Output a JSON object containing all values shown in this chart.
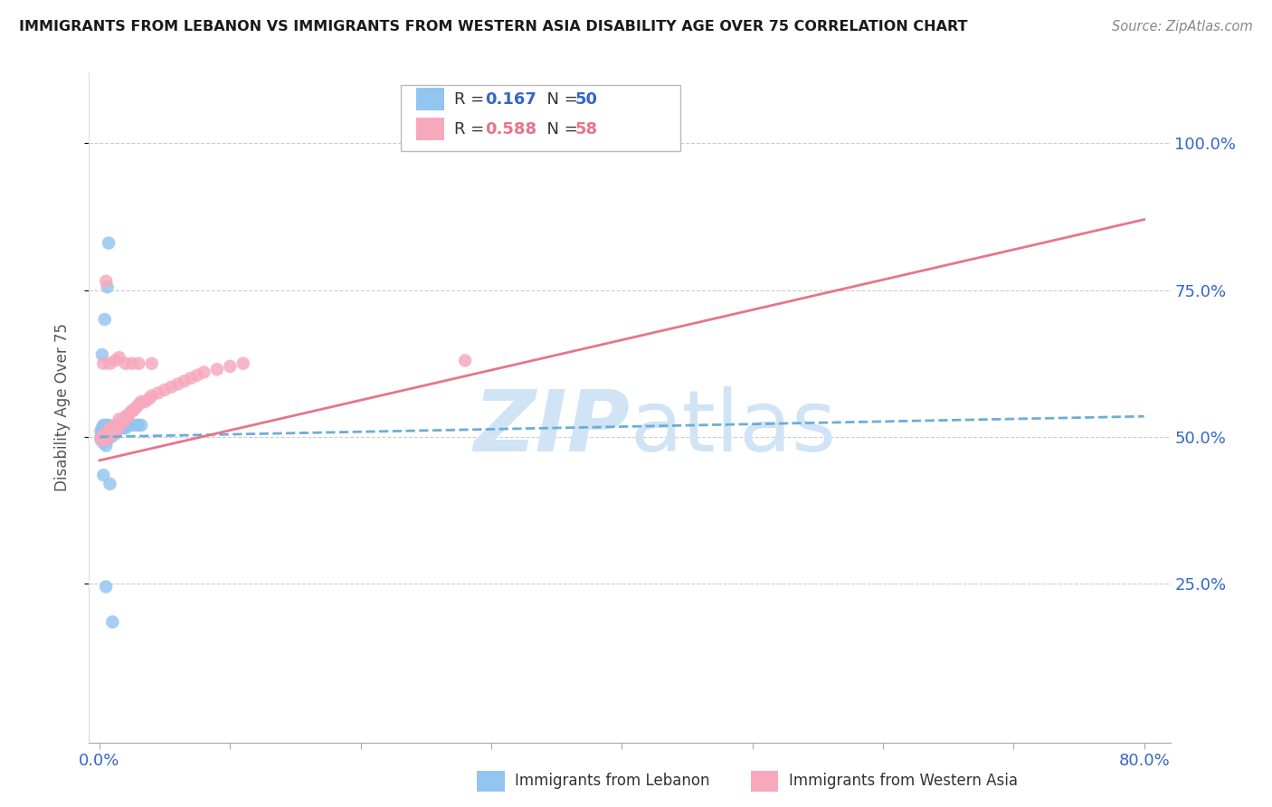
{
  "title": "IMMIGRANTS FROM LEBANON VS IMMIGRANTS FROM WESTERN ASIA DISABILITY AGE OVER 75 CORRELATION CHART",
  "source": "Source: ZipAtlas.com",
  "ylabel": "Disability Age Over 75",
  "ytick_labels": [
    "100.0%",
    "75.0%",
    "50.0%",
    "25.0%"
  ],
  "ytick_values": [
    1.0,
    0.75,
    0.5,
    0.25
  ],
  "xlim": [
    0.0,
    0.8
  ],
  "ylim": [
    0.0,
    1.1
  ],
  "color_blue": "#92C5F0",
  "color_pink": "#F7A8BC",
  "trend_blue_color": "#6BAED6",
  "trend_pink_color": "#E8758A",
  "watermark_color": "#D0E4F5",
  "grid_color": "#CCCCCC",
  "title_color": "#1A1A1A",
  "axis_label_color": "#3366CC",
  "ylabel_color": "#555555",
  "legend_r1_text": "R =  0.167   N = 50",
  "legend_r2_text": "R =  0.588   N = 58",
  "r_lebanon": 0.167,
  "n_lebanon": 50,
  "r_western_asia": 0.588,
  "n_western_asia": 58,
  "scatter_lebanon_x": [
    0.001,
    0.001,
    0.002,
    0.002,
    0.002,
    0.003,
    0.003,
    0.003,
    0.003,
    0.004,
    0.004,
    0.004,
    0.005,
    0.005,
    0.005,
    0.005,
    0.006,
    0.006,
    0.006,
    0.007,
    0.007,
    0.007,
    0.008,
    0.008,
    0.009,
    0.009,
    0.01,
    0.01,
    0.011,
    0.012,
    0.012,
    0.013,
    0.014,
    0.016,
    0.017,
    0.018,
    0.02,
    0.022,
    0.025,
    0.028,
    0.03,
    0.032,
    0.002,
    0.004,
    0.006,
    0.007,
    0.003,
    0.008,
    0.005,
    0.01
  ],
  "scatter_lebanon_y": [
    0.5,
    0.51,
    0.495,
    0.505,
    0.515,
    0.49,
    0.5,
    0.51,
    0.52,
    0.495,
    0.505,
    0.515,
    0.485,
    0.5,
    0.51,
    0.52,
    0.495,
    0.505,
    0.515,
    0.5,
    0.51,
    0.52,
    0.505,
    0.515,
    0.5,
    0.515,
    0.505,
    0.515,
    0.51,
    0.505,
    0.515,
    0.51,
    0.515,
    0.515,
    0.52,
    0.515,
    0.515,
    0.52,
    0.52,
    0.52,
    0.52,
    0.52,
    0.64,
    0.7,
    0.755,
    0.83,
    0.435,
    0.42,
    0.245,
    0.185
  ],
  "scatter_western_asia_x": [
    0.001,
    0.002,
    0.003,
    0.004,
    0.005,
    0.005,
    0.006,
    0.007,
    0.007,
    0.008,
    0.008,
    0.009,
    0.01,
    0.01,
    0.011,
    0.012,
    0.013,
    0.013,
    0.014,
    0.015,
    0.015,
    0.016,
    0.017,
    0.018,
    0.019,
    0.02,
    0.021,
    0.022,
    0.023,
    0.025,
    0.026,
    0.028,
    0.03,
    0.032,
    0.035,
    0.038,
    0.04,
    0.045,
    0.05,
    0.055,
    0.06,
    0.065,
    0.07,
    0.075,
    0.08,
    0.09,
    0.1,
    0.11,
    0.003,
    0.005,
    0.008,
    0.012,
    0.015,
    0.02,
    0.025,
    0.03,
    0.28,
    0.04
  ],
  "scatter_western_asia_y": [
    0.495,
    0.5,
    0.5,
    0.505,
    0.495,
    0.505,
    0.5,
    0.5,
    0.51,
    0.505,
    0.515,
    0.505,
    0.505,
    0.515,
    0.51,
    0.515,
    0.51,
    0.52,
    0.515,
    0.52,
    0.53,
    0.525,
    0.525,
    0.525,
    0.53,
    0.535,
    0.535,
    0.535,
    0.54,
    0.545,
    0.545,
    0.55,
    0.555,
    0.56,
    0.56,
    0.565,
    0.57,
    0.575,
    0.58,
    0.585,
    0.59,
    0.595,
    0.6,
    0.605,
    0.61,
    0.615,
    0.62,
    0.625,
    0.625,
    0.765,
    0.625,
    0.63,
    0.635,
    0.625,
    0.625,
    0.625,
    0.63,
    0.625
  ],
  "trend_leb_x0": 0.0,
  "trend_leb_x1": 0.8,
  "trend_leb_y0": 0.5,
  "trend_leb_y1": 0.535,
  "trend_wa_x0": 0.0,
  "trend_wa_x1": 0.8,
  "trend_wa_y0": 0.46,
  "trend_wa_y1": 0.87,
  "bottom_legend_leb": "Immigrants from Lebanon",
  "bottom_legend_wa": "Immigrants from Western Asia"
}
